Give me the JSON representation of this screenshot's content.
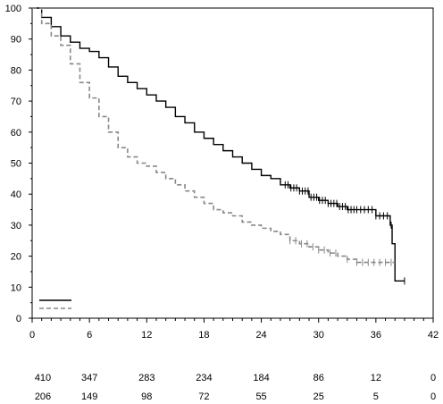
{
  "chart_data": {
    "type": "line",
    "title": "",
    "xlabel": "",
    "ylabel": "",
    "xlim": [
      0,
      42
    ],
    "ylim": [
      0,
      100
    ],
    "x_ticks": [
      0,
      6,
      12,
      18,
      24,
      30,
      36,
      42
    ],
    "y_ticks": [
      0,
      10,
      20,
      30,
      40,
      50,
      60,
      70,
      80,
      90,
      100
    ],
    "x_tick_labels": [
      "0",
      "6",
      "12",
      "18",
      "24",
      "30",
      "36",
      "42"
    ],
    "y_tick_labels": [
      "0",
      "10",
      "20",
      "30",
      "40",
      "50",
      "60",
      "70",
      "80",
      "90",
      "100"
    ],
    "grid": false,
    "legend": {
      "placement": "bottom-left",
      "entries": [
        "",
        ""
      ]
    },
    "series": [
      {
        "style": "solid",
        "color": "#000000",
        "points": [
          [
            0,
            100
          ],
          [
            1,
            97
          ],
          [
            2,
            94
          ],
          [
            3,
            91
          ],
          [
            4,
            89
          ],
          [
            5,
            87
          ],
          [
            6,
            86
          ],
          [
            7,
            84
          ],
          [
            8,
            81
          ],
          [
            9,
            78
          ],
          [
            10,
            76
          ],
          [
            11,
            74
          ],
          [
            12,
            72
          ],
          [
            13,
            70
          ],
          [
            14,
            68
          ],
          [
            15,
            65
          ],
          [
            16,
            63
          ],
          [
            17,
            60
          ],
          [
            18,
            58
          ],
          [
            19,
            56
          ],
          [
            20,
            54
          ],
          [
            21,
            52
          ],
          [
            22,
            50
          ],
          [
            23,
            48
          ],
          [
            24,
            46
          ],
          [
            25,
            45
          ],
          [
            26,
            43
          ],
          [
            27,
            42
          ],
          [
            28,
            41
          ],
          [
            29,
            39
          ],
          [
            30,
            38
          ],
          [
            31,
            37
          ],
          [
            32,
            36
          ],
          [
            33,
            35
          ],
          [
            34,
            35
          ],
          [
            35,
            35
          ],
          [
            36,
            33
          ],
          [
            37,
            33
          ],
          [
            37.5,
            30
          ],
          [
            37.7,
            24
          ],
          [
            38,
            12
          ],
          [
            39,
            12
          ]
        ],
        "censor_times": [
          26.5,
          26.8,
          27.1,
          27.4,
          27.7,
          28,
          28.3,
          28.6,
          28.9,
          29.2,
          29.5,
          29.8,
          30.1,
          30.4,
          30.7,
          31,
          31.3,
          31.6,
          31.9,
          32.2,
          32.5,
          32.8,
          33.1,
          33.4,
          33.7,
          34,
          34.4,
          34.8,
          35.2,
          35.6,
          36,
          36.4,
          36.8,
          37.2,
          37.6,
          39
        ]
      },
      {
        "style": "dashed",
        "color": "#888888",
        "points": [
          [
            0,
            100
          ],
          [
            1,
            95
          ],
          [
            2,
            91
          ],
          [
            3,
            88
          ],
          [
            4,
            82
          ],
          [
            5,
            76
          ],
          [
            6,
            71
          ],
          [
            7,
            65
          ],
          [
            8,
            60
          ],
          [
            9,
            55
          ],
          [
            10,
            52
          ],
          [
            11,
            50
          ],
          [
            12,
            49
          ],
          [
            13,
            47
          ],
          [
            14,
            45
          ],
          [
            15,
            43
          ],
          [
            16,
            41
          ],
          [
            17,
            39
          ],
          [
            18,
            37
          ],
          [
            19,
            35
          ],
          [
            20,
            34
          ],
          [
            21,
            33
          ],
          [
            22,
            31
          ],
          [
            23,
            30
          ],
          [
            24,
            29
          ],
          [
            25,
            28
          ],
          [
            26,
            27
          ],
          [
            27,
            25
          ],
          [
            28,
            24
          ],
          [
            29,
            23
          ],
          [
            30,
            22
          ],
          [
            31,
            21
          ],
          [
            32,
            20
          ],
          [
            33,
            19
          ],
          [
            34,
            18
          ],
          [
            35,
            18
          ],
          [
            36,
            18
          ],
          [
            37,
            18
          ],
          [
            38,
            18
          ]
        ],
        "censor_times": [
          27,
          27.6,
          28.2,
          28.8,
          29.4,
          30,
          30.6,
          31.2,
          31.8,
          33,
          34,
          34.6,
          35.2,
          35.8,
          36.4,
          37,
          37.6
        ]
      }
    ],
    "risk_table": {
      "times": [
        0,
        6,
        12,
        18,
        24,
        30,
        36,
        42
      ],
      "rows": [
        [
          "410",
          "347",
          "283",
          "234",
          "184",
          "86",
          "12",
          "0"
        ],
        [
          "206",
          "149",
          "98",
          "72",
          "55",
          "25",
          "5",
          "0"
        ]
      ]
    }
  }
}
